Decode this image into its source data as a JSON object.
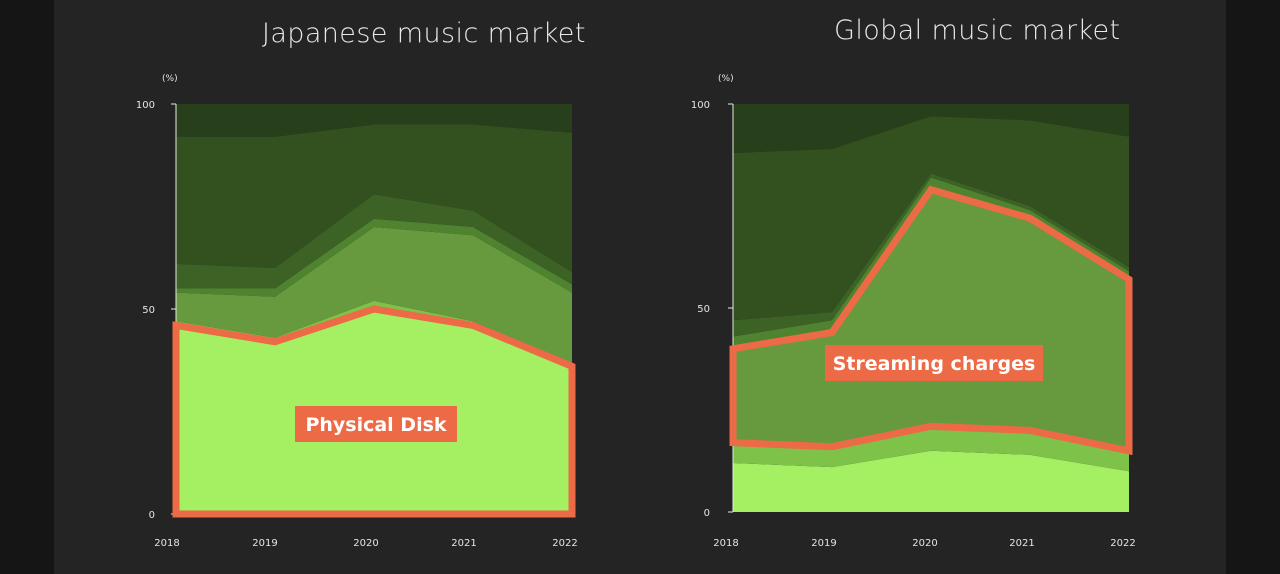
{
  "colors": {
    "background": "#242424",
    "highlight": "#ec6a45",
    "layers": [
      "#a4f062",
      "#7fc24a",
      "#679a3e",
      "#50832f",
      "#3c6226",
      "#33511f",
      "#273f1a"
    ]
  },
  "chart_data": [
    {
      "type": "area",
      "stacked": true,
      "title": "Japanese music market",
      "unit_label": "(%)",
      "x": [
        "2018",
        "2019",
        "2020",
        "2021",
        "2022"
      ],
      "ylim": [
        0,
        100
      ],
      "yticks": [
        "0",
        "50",
        "100"
      ],
      "series": [
        {
          "values": [
            46,
            42,
            50,
            46,
            36
          ],
          "color": "#a4f062"
        },
        {
          "values": [
            1,
            1,
            2,
            1,
            0
          ],
          "color": "#7fc24a"
        },
        {
          "values": [
            7,
            10,
            18,
            21,
            18
          ],
          "color": "#679a3e"
        },
        {
          "values": [
            1,
            2,
            2,
            2,
            2
          ],
          "color": "#50832f"
        },
        {
          "values": [
            6,
            5,
            6,
            4,
            3
          ],
          "color": "#3c6226"
        },
        {
          "values": [
            31,
            32,
            17,
            21,
            34
          ],
          "color": "#33511f"
        },
        {
          "values": [
            8,
            8,
            5,
            5,
            7
          ],
          "color": "#273f1a"
        }
      ],
      "annotation": {
        "text": "Physical Disk"
      }
    },
    {
      "type": "area",
      "stacked": true,
      "title": "Global music market",
      "unit_label": "(%)",
      "x": [
        "2018",
        "2019",
        "2020",
        "2021",
        "2022"
      ],
      "ylim": [
        0,
        100
      ],
      "yticks": [
        "0",
        "50",
        "100"
      ],
      "series": [
        {
          "values": [
            12,
            11,
            15,
            14,
            10
          ],
          "color": "#a4f062"
        },
        {
          "values": [
            5,
            5,
            6,
            6,
            5
          ],
          "color": "#7fc24a"
        },
        {
          "values": [
            23,
            28,
            58,
            52,
            42
          ],
          "color": "#679a3e"
        },
        {
          "values": [
            3,
            3,
            3,
            2,
            2
          ],
          "color": "#50832f"
        },
        {
          "values": [
            4,
            2,
            1,
            1,
            1
          ],
          "color": "#3c6226"
        },
        {
          "values": [
            41,
            40,
            14,
            21,
            32
          ],
          "color": "#33511f"
        },
        {
          "values": [
            12,
            11,
            3,
            4,
            8
          ],
          "color": "#273f1a"
        }
      ],
      "annotation": {
        "text": "Streaming charges"
      }
    }
  ]
}
